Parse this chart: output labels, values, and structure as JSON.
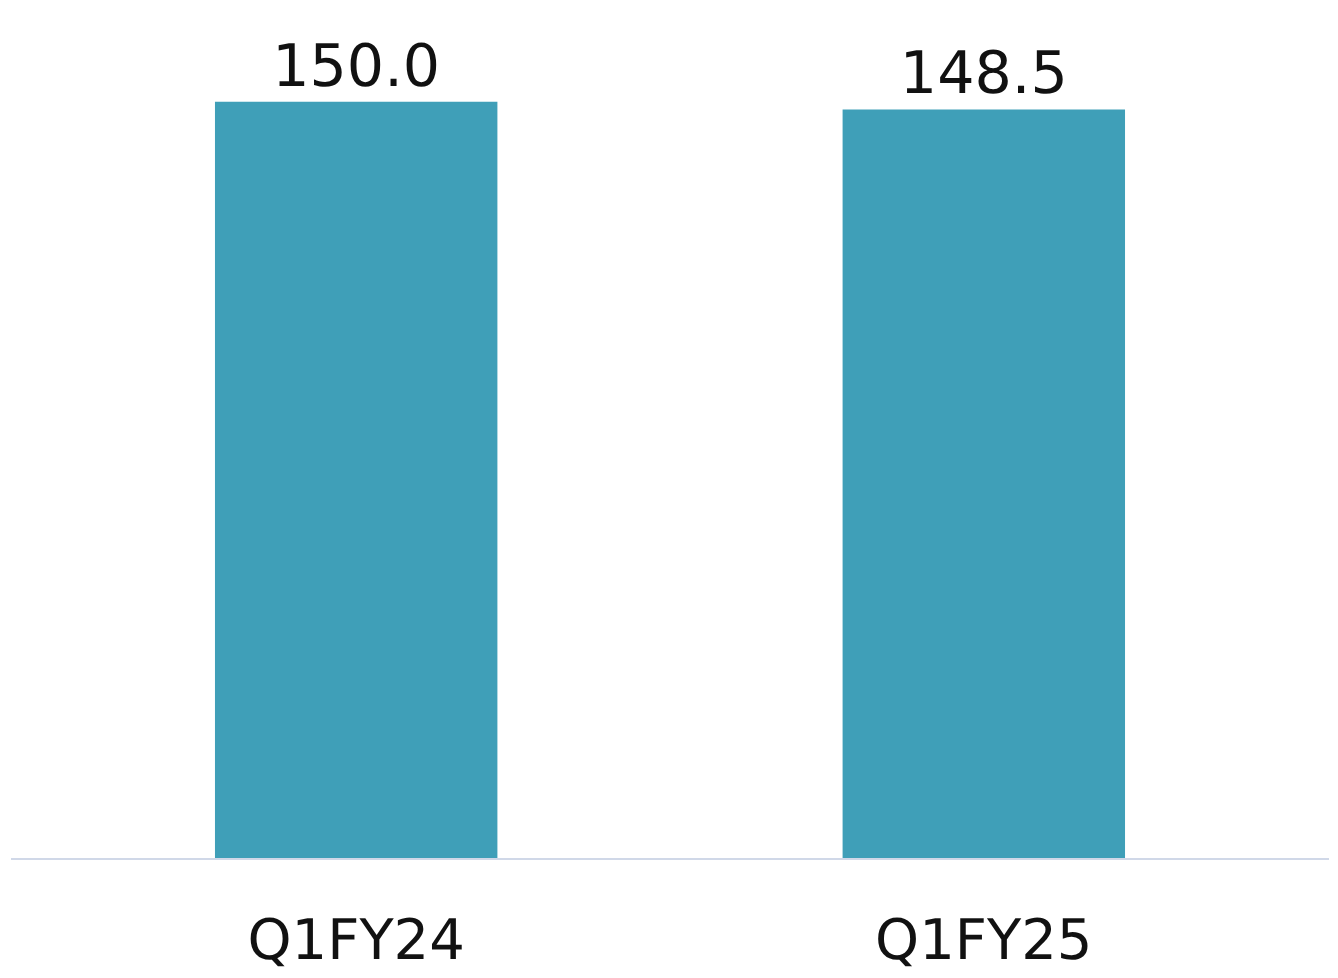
{
  "chart_data": {
    "type": "bar",
    "categories": [
      "Q1FY24",
      "Q1FY25"
    ],
    "values": [
      150.0,
      148.5
    ],
    "value_labels": [
      "150.0",
      "148.5"
    ],
    "color": "#3f9fb8"
  }
}
